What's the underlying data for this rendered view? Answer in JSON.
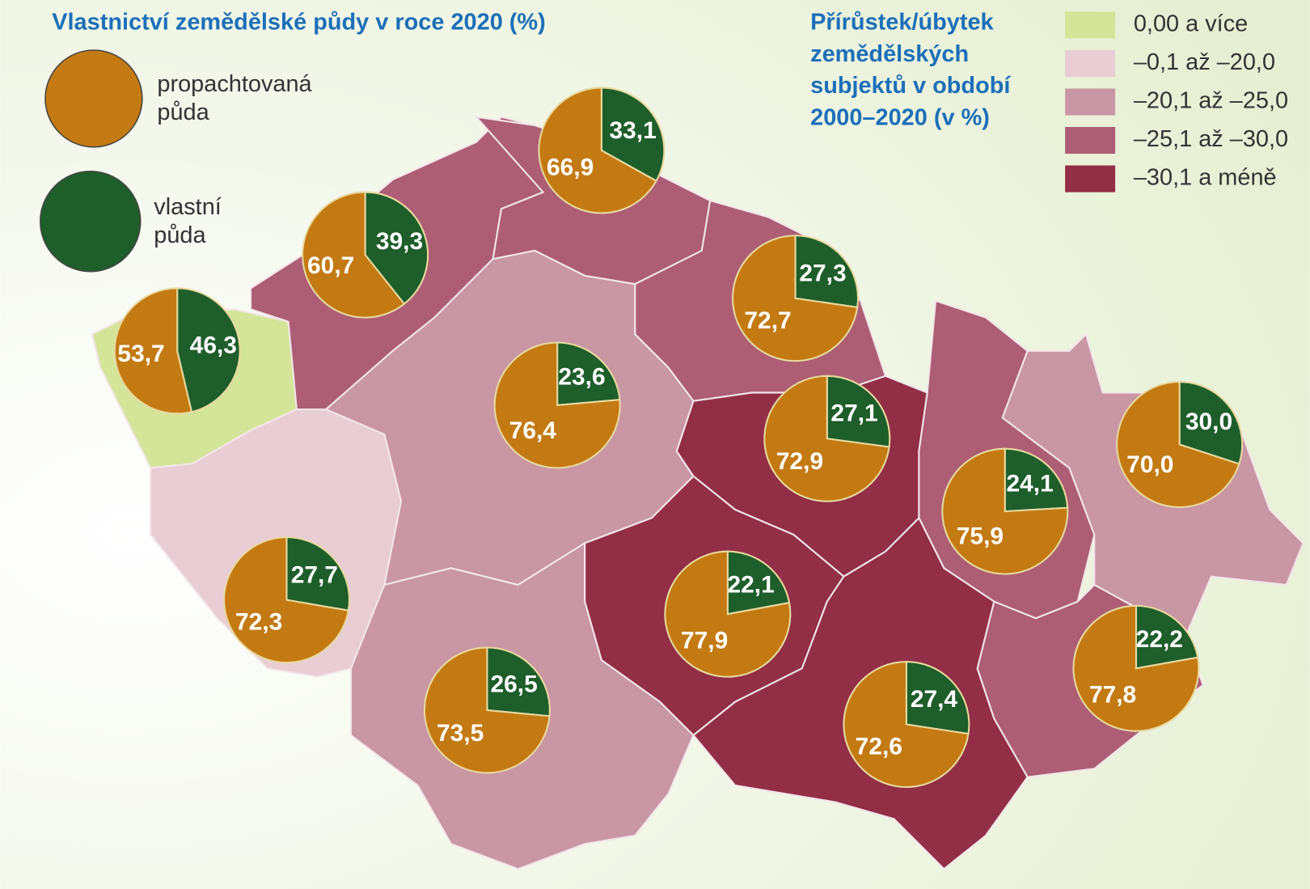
{
  "chart_data": {
    "type": "pie-map",
    "title": "Vlastnictví zemědělské půdy v roce 2020 (%)",
    "legend": [
      {
        "label_lines": [
          "propachtovaná",
          "půda"
        ],
        "color": "#c47a12"
      },
      {
        "label_lines": [
          "vlastní",
          "půda"
        ],
        "color": "#1e5e2a"
      }
    ],
    "classes_title": [
      "Přírůstek/úbytek",
      "zemědělských",
      "subjektů v období",
      "2000–2020 (v %)"
    ],
    "classes": [
      {
        "label": "0,00 a více",
        "color": "#d4e59a"
      },
      {
        "label": "–0,1 až –20,0",
        "color": "#e8cdd4"
      },
      {
        "label": "–20,1 až –25,0",
        "color": "#c996a4"
      },
      {
        "label": "–25,1 až –30,0",
        "color": "#ad5e74"
      },
      {
        "label": "–30,1 a méně",
        "color": "#922e46"
      }
    ],
    "regions": [
      {
        "class": 0,
        "values": [
          53.7,
          46.3
        ],
        "value_labels": [
          "53,7",
          "46,3"
        ]
      },
      {
        "class": 3,
        "values": [
          60.7,
          39.3
        ],
        "value_labels": [
          "60,7",
          "39,3"
        ]
      },
      {
        "class": 3,
        "values": [
          66.9,
          33.1
        ],
        "value_labels": [
          "66,9",
          "33,1"
        ]
      },
      {
        "class": 3,
        "values": [
          72.7,
          27.3
        ],
        "value_labels": [
          "72,7",
          "27,3"
        ]
      },
      {
        "class": 2,
        "values": [
          76.4,
          23.6
        ],
        "value_labels": [
          "76,4",
          "23,6"
        ]
      },
      {
        "class": 4,
        "values": [
          72.9,
          27.1
        ],
        "value_labels": [
          "72,9",
          "27,1"
        ]
      },
      {
        "class": 3,
        "values": [
          75.9,
          24.1
        ],
        "value_labels": [
          "75,9",
          "24,1"
        ]
      },
      {
        "class": 2,
        "values": [
          70.0,
          30.0
        ],
        "value_labels": [
          "70,0",
          "30,0"
        ]
      },
      {
        "class": 1,
        "values": [
          72.3,
          27.7
        ],
        "value_labels": [
          "72,3",
          "27,7"
        ]
      },
      {
        "class": 2,
        "values": [
          73.5,
          26.5
        ],
        "value_labels": [
          "73,5",
          "26,5"
        ]
      },
      {
        "class": 4,
        "values": [
          77.9,
          22.1
        ],
        "value_labels": [
          "77,9",
          "22,1"
        ]
      },
      {
        "class": 4,
        "values": [
          72.6,
          27.4
        ],
        "value_labels": [
          "72,6",
          "27,4"
        ]
      },
      {
        "class": 3,
        "values": [
          77.8,
          22.2
        ],
        "value_labels": [
          "77,8",
          "22,2"
        ]
      }
    ]
  }
}
